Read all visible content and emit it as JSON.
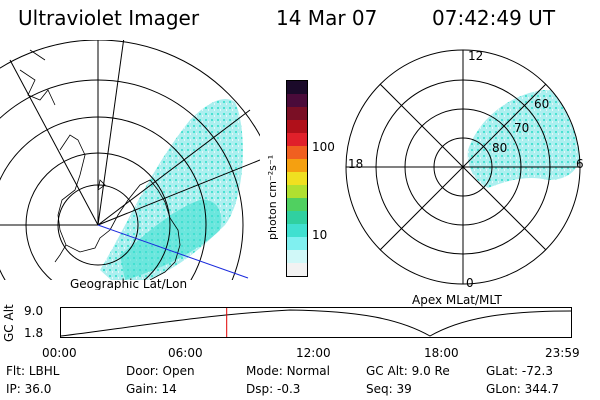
{
  "header": {
    "instrument": "Ultraviolet Imager",
    "date": "14 Mar 07",
    "time": "07:42:49 UT"
  },
  "geo_panel": {
    "caption": "Geographic Lat/Lon"
  },
  "mag_panel": {
    "caption": "Apex MLat/MLT",
    "mlt_labels": {
      "top": "12",
      "left": "18",
      "right": "6",
      "bottom": "0"
    },
    "mlat_labels": [
      "60",
      "70",
      "80"
    ]
  },
  "colorbar": {
    "unit_label": "photon cm⁻²s⁻¹",
    "ticks": [
      "100",
      "10"
    ],
    "colors": [
      "#1b0a2a",
      "#4a0b3a",
      "#7a0f25",
      "#b0101a",
      "#e0202a",
      "#f06020",
      "#f5a010",
      "#f0e020",
      "#b0e030",
      "#50d060",
      "#30d0a0",
      "#40e0d0",
      "#80f0f0",
      "#d0f8f8",
      "#f2f2f2"
    ]
  },
  "timeline": {
    "y_axis_label": "GC Alt",
    "y_ticks": [
      "9.0",
      "1.8"
    ],
    "x_ticks": [
      "00:00",
      "06:00",
      "12:00",
      "18:00",
      "23:59"
    ],
    "current_time_fraction": 0.3249
  },
  "status": {
    "row1": [
      {
        "label": "Flt:",
        "value": "LBHL"
      },
      {
        "label": "Door:",
        "value": "Open"
      },
      {
        "label": "Mode:",
        "value": "Normal"
      },
      {
        "label": "GC Alt:",
        "value": "9.0 Re"
      },
      {
        "label": "GLat:",
        "value": "-72.3"
      }
    ],
    "row2": [
      {
        "label": "IP:",
        "value": "36.0"
      },
      {
        "label": "Gain:",
        "value": "14"
      },
      {
        "label": "Dsp:",
        "value": "-0.3"
      },
      {
        "label": "Seq:",
        "value": "39"
      },
      {
        "label": "GLon:",
        "value": "344.7"
      }
    ]
  },
  "colors": {
    "aurora": "#40e0d0",
    "aurora_light": "#a8eeee",
    "track": "#1a2adc",
    "marker": "#e00000"
  }
}
